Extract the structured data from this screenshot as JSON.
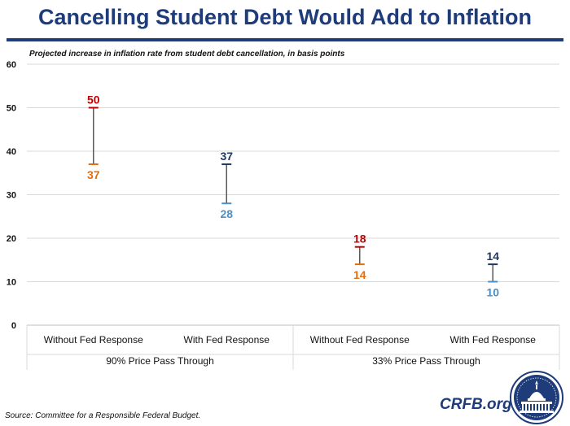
{
  "header": {
    "title": "Cancelling Student Debt Would Add to Inflation",
    "subtitle": "Projected increase in inflation rate from student debt cancellation, in basis points"
  },
  "footer": {
    "source": "Source: Committee for a Responsible Federal Budget.",
    "brand": "CRFB.org"
  },
  "colors": {
    "high_without_fed": "#c00000",
    "low_without_fed": "#e46c0a",
    "high_with_fed": "#1f3864",
    "low_with_fed": "#4a90c8",
    "stem": "#595959",
    "title": "#1f3c7a"
  },
  "chart_data": {
    "type": "range",
    "title": "Cancelling Student Debt Would Add to Inflation",
    "subtitle": "Projected increase in inflation rate from student debt cancellation, in basis points",
    "ylim": [
      0,
      60
    ],
    "yticks": [
      0,
      10,
      20,
      30,
      40,
      50,
      60
    ],
    "grid": true,
    "categories": [
      "Without Fed Response",
      "With Fed Response",
      "Without Fed Response",
      "With Fed Response"
    ],
    "groups": [
      "90% Price Pass Through",
      "33% Price Pass Through"
    ],
    "points": [
      {
        "category": "Without Fed Response",
        "group": "90% Price Pass Through",
        "high": 50,
        "low": 37
      },
      {
        "category": "With Fed Response",
        "group": "90% Price Pass Through",
        "high": 37,
        "low": 28
      },
      {
        "category": "Without Fed Response",
        "group": "33% Price Pass Through",
        "high": 18,
        "low": 14
      },
      {
        "category": "With Fed Response",
        "group": "33% Price Pass Through",
        "high": 14,
        "low": 10
      }
    ]
  }
}
